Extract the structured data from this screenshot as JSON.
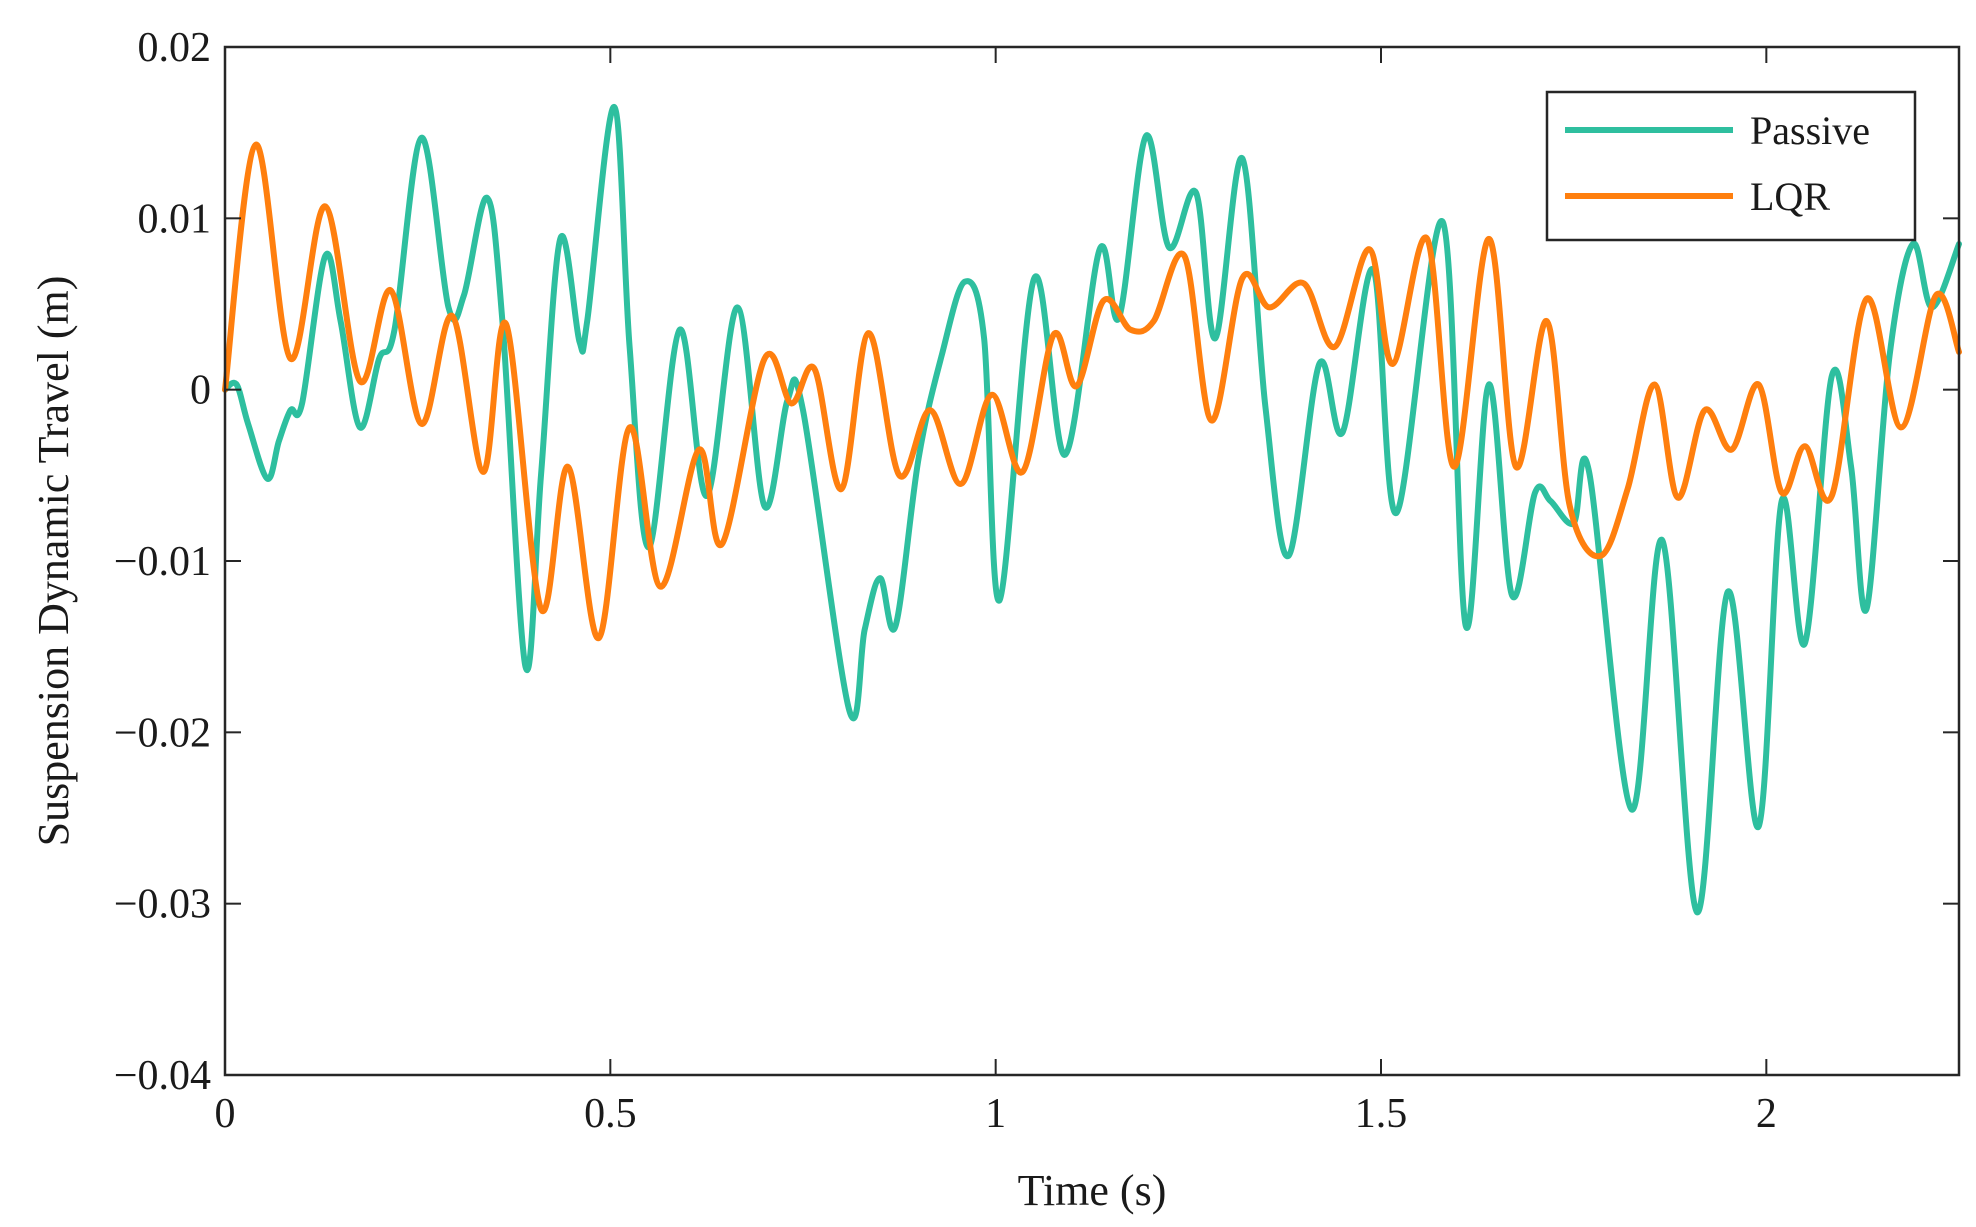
{
  "chart_data": {
    "type": "line",
    "title": "",
    "xlabel": "Time (s)",
    "ylabel": "Suspension Dynamic Travel (m)",
    "xlim": [
      0,
      2.25
    ],
    "ylim": [
      -0.04,
      0.02
    ],
    "xticks": [
      0,
      0.5,
      1,
      1.5,
      2
    ],
    "xtick_labels": [
      "0",
      "0.5",
      "1",
      "1.5",
      "2"
    ],
    "yticks": [
      0.02,
      0.01,
      0,
      -0.01,
      -0.02,
      -0.03,
      -0.04
    ],
    "ytick_labels": [
      "0.02",
      "0.01",
      "0",
      "−0.01",
      "−0.02",
      "−0.03",
      "−0.04"
    ],
    "grid": false,
    "legend_position": "top-right",
    "series": [
      {
        "name": "Passive",
        "color": "#2ebf9f",
        "points": [
          [
            0,
            0
          ],
          [
            0.015,
            0.0003
          ],
          [
            0.03,
            -0.002
          ],
          [
            0.055,
            -0.0052
          ],
          [
            0.07,
            -0.003
          ],
          [
            0.085,
            -0.0012
          ],
          [
            0.1,
            -0.0008
          ],
          [
            0.13,
            0.0078
          ],
          [
            0.15,
            0.004
          ],
          [
            0.175,
            -0.0022
          ],
          [
            0.2,
            0.0018
          ],
          [
            0.22,
            0.0035
          ],
          [
            0.255,
            0.0147
          ],
          [
            0.29,
            0.0048
          ],
          [
            0.31,
            0.0055
          ],
          [
            0.34,
            0.0112
          ],
          [
            0.36,
            0.004
          ],
          [
            0.39,
            -0.0162
          ],
          [
            0.41,
            -0.005
          ],
          [
            0.435,
            0.0088
          ],
          [
            0.46,
            0.0028
          ],
          [
            0.47,
            0.004
          ],
          [
            0.505,
            0.0165
          ],
          [
            0.525,
            0.0025
          ],
          [
            0.55,
            -0.0092
          ],
          [
            0.59,
            0.0035
          ],
          [
            0.625,
            -0.0062
          ],
          [
            0.665,
            0.0048
          ],
          [
            0.7,
            -0.0068
          ],
          [
            0.73,
            -0.0006
          ],
          [
            0.75,
            -0.0012
          ],
          [
            0.81,
            -0.0187
          ],
          [
            0.83,
            -0.014
          ],
          [
            0.85,
            -0.011
          ],
          [
            0.87,
            -0.0138
          ],
          [
            0.9,
            -0.004
          ],
          [
            0.93,
            0.002
          ],
          [
            0.96,
            0.0063
          ],
          [
            0.985,
            0.003
          ],
          [
            1.005,
            -0.0123
          ],
          [
            1.05,
            0.0065
          ],
          [
            1.09,
            -0.0038
          ],
          [
            1.135,
            0.0082
          ],
          [
            1.16,
            0.0042
          ],
          [
            1.195,
            0.0148
          ],
          [
            1.225,
            0.0083
          ],
          [
            1.26,
            0.0115
          ],
          [
            1.285,
            0.003
          ],
          [
            1.32,
            0.0135
          ],
          [
            1.35,
            -0.001
          ],
          [
            1.38,
            -0.0097
          ],
          [
            1.42,
            0.0015
          ],
          [
            1.45,
            -0.0025
          ],
          [
            1.49,
            0.007
          ],
          [
            1.52,
            -0.0072
          ],
          [
            1.58,
            0.0098
          ],
          [
            1.61,
            -0.0138
          ],
          [
            1.64,
            0.0003
          ],
          [
            1.67,
            -0.012
          ],
          [
            1.7,
            -0.006
          ],
          [
            1.72,
            -0.0065
          ],
          [
            1.75,
            -0.0078
          ],
          [
            1.77,
            -0.0048
          ],
          [
            1.825,
            -0.0245
          ],
          [
            1.865,
            -0.0088
          ],
          [
            1.91,
            -0.0305
          ],
          [
            1.95,
            -0.0118
          ],
          [
            1.99,
            -0.0255
          ],
          [
            2.02,
            -0.0065
          ],
          [
            2.05,
            -0.0148
          ],
          [
            2.085,
            0.0008
          ],
          [
            2.11,
            -0.0045
          ],
          [
            2.13,
            -0.0128
          ],
          [
            2.16,
            0.002
          ],
          [
            2.19,
            0.0085
          ],
          [
            2.215,
            0.0048
          ],
          [
            2.25,
            0.0085
          ]
        ]
      },
      {
        "name": "LQR",
        "color": "#ff7f0e",
        "points": [
          [
            0,
            0
          ],
          [
            0.04,
            0.0143
          ],
          [
            0.085,
            0.0018
          ],
          [
            0.13,
            0.0107
          ],
          [
            0.175,
            0.0005
          ],
          [
            0.215,
            0.0058
          ],
          [
            0.255,
            -0.002
          ],
          [
            0.295,
            0.0043
          ],
          [
            0.335,
            -0.0048
          ],
          [
            0.365,
            0.0038
          ],
          [
            0.41,
            -0.0128
          ],
          [
            0.445,
            -0.0045
          ],
          [
            0.485,
            -0.0145
          ],
          [
            0.525,
            -0.0022
          ],
          [
            0.565,
            -0.0115
          ],
          [
            0.615,
            -0.0035
          ],
          [
            0.645,
            -0.009
          ],
          [
            0.7,
            0.0018
          ],
          [
            0.735,
            -0.0008
          ],
          [
            0.765,
            0.0012
          ],
          [
            0.8,
            -0.0058
          ],
          [
            0.835,
            0.0033
          ],
          [
            0.875,
            -0.005
          ],
          [
            0.915,
            -0.0012
          ],
          [
            0.955,
            -0.0055
          ],
          [
            0.995,
            -0.0003
          ],
          [
            1.035,
            -0.0048
          ],
          [
            1.075,
            0.0032
          ],
          [
            1.105,
            0.0002
          ],
          [
            1.14,
            0.0052
          ],
          [
            1.175,
            0.0035
          ],
          [
            1.205,
            0.004
          ],
          [
            1.245,
            0.0078
          ],
          [
            1.28,
            -0.0018
          ],
          [
            1.32,
            0.0065
          ],
          [
            1.355,
            0.0048
          ],
          [
            1.4,
            0.0062
          ],
          [
            1.44,
            0.0025
          ],
          [
            1.485,
            0.0082
          ],
          [
            1.515,
            0.0015
          ],
          [
            1.56,
            0.0088
          ],
          [
            1.595,
            -0.0045
          ],
          [
            1.64,
            0.0088
          ],
          [
            1.675,
            -0.0045
          ],
          [
            1.715,
            0.004
          ],
          [
            1.745,
            -0.0068
          ],
          [
            1.785,
            -0.0097
          ],
          [
            1.82,
            -0.0058
          ],
          [
            1.855,
            0.0003
          ],
          [
            1.885,
            -0.0063
          ],
          [
            1.92,
            -0.0012
          ],
          [
            1.955,
            -0.0035
          ],
          [
            1.99,
            0.0003
          ],
          [
            2.02,
            -0.006
          ],
          [
            2.05,
            -0.0033
          ],
          [
            2.085,
            -0.0062
          ],
          [
            2.13,
            0.0053
          ],
          [
            2.175,
            -0.0022
          ],
          [
            2.22,
            0.0055
          ],
          [
            2.25,
            0.0022
          ]
        ]
      }
    ]
  }
}
